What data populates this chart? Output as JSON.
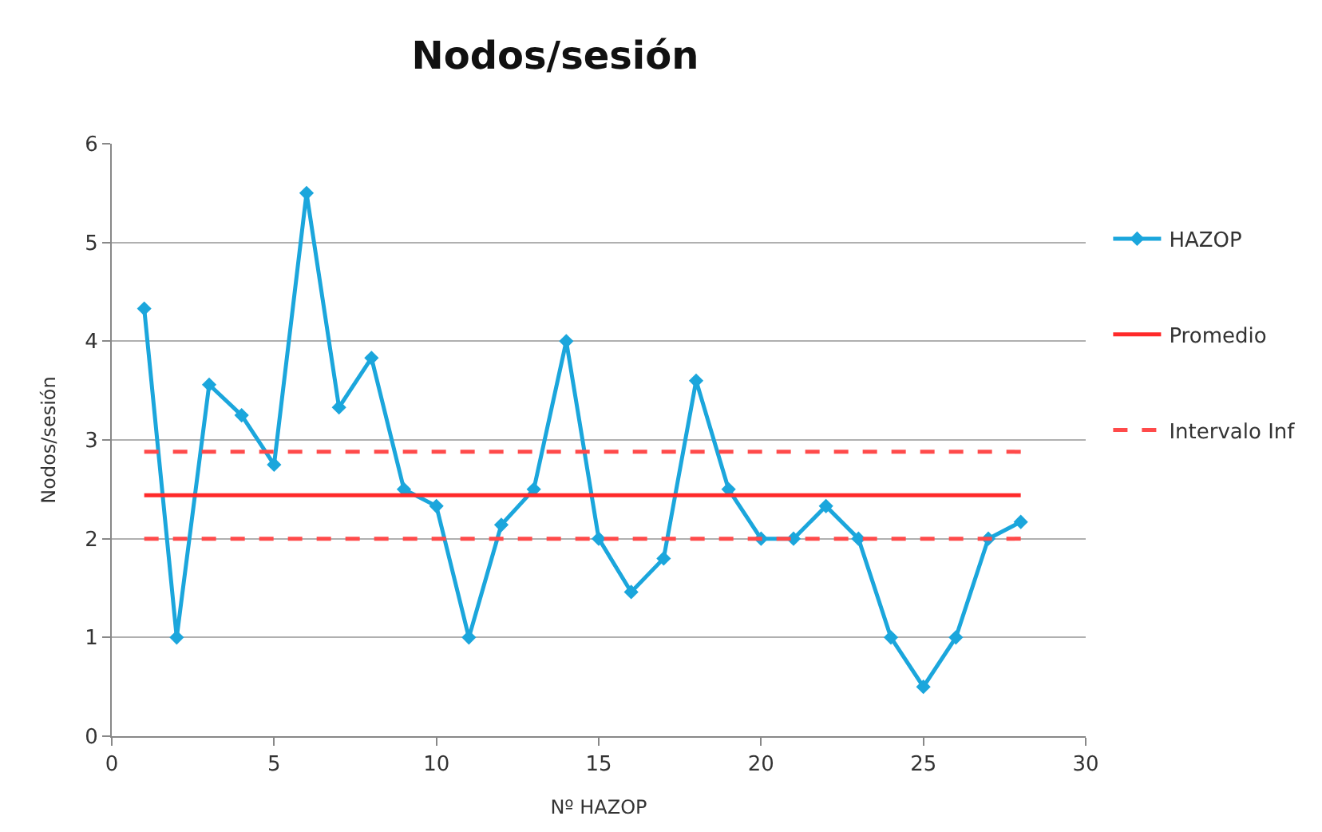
{
  "chart_data": {
    "type": "line",
    "title": "Nodos/sesión",
    "xlabel": "Nº HAZOP",
    "ylabel": "Nodos/sesión",
    "series": [
      {
        "name": "HAZOP",
        "color": "#1ba6dc",
        "marker": "diamond",
        "x": [
          1,
          2,
          3,
          4,
          5,
          6,
          7,
          8,
          9,
          10,
          11,
          12,
          13,
          14,
          15,
          16,
          17,
          18,
          19,
          20,
          21,
          22,
          23,
          24,
          25,
          26,
          27,
          28
        ],
        "values": [
          4.33,
          1,
          3.56,
          3.25,
          2.75,
          5.5,
          3.33,
          3.83,
          2.5,
          2.33,
          1,
          2.14,
          2.5,
          4,
          2,
          1.46,
          1.8,
          3.6,
          2.5,
          2,
          2,
          2.33,
          2,
          1,
          0.5,
          1,
          2,
          2.17
        ]
      },
      {
        "name": "Promedio",
        "color": "#ff2a2a",
        "marker": "none",
        "x": [
          1,
          28
        ],
        "values": [
          2.44,
          2.44
        ]
      },
      {
        "name": "Intervalo Inf",
        "color": "#ff4a4a",
        "marker": "none",
        "line_style": "dashed",
        "x": [
          1,
          28
        ],
        "values": [
          2.0,
          2.0
        ]
      },
      {
        "color": "#ff4a4a",
        "marker": "none",
        "line_style": "dashed",
        "x": [
          1,
          28
        ],
        "values": [
          2.88,
          2.88
        ]
      }
    ],
    "xlim": [
      0,
      30
    ],
    "xticks": [
      0,
      5,
      10,
      15,
      20,
      25,
      30
    ],
    "ylim": [
      0,
      6
    ],
    "yticks": [
      0,
      1,
      2,
      3,
      4,
      5,
      6
    ],
    "grid": "y",
    "legend": "right"
  }
}
